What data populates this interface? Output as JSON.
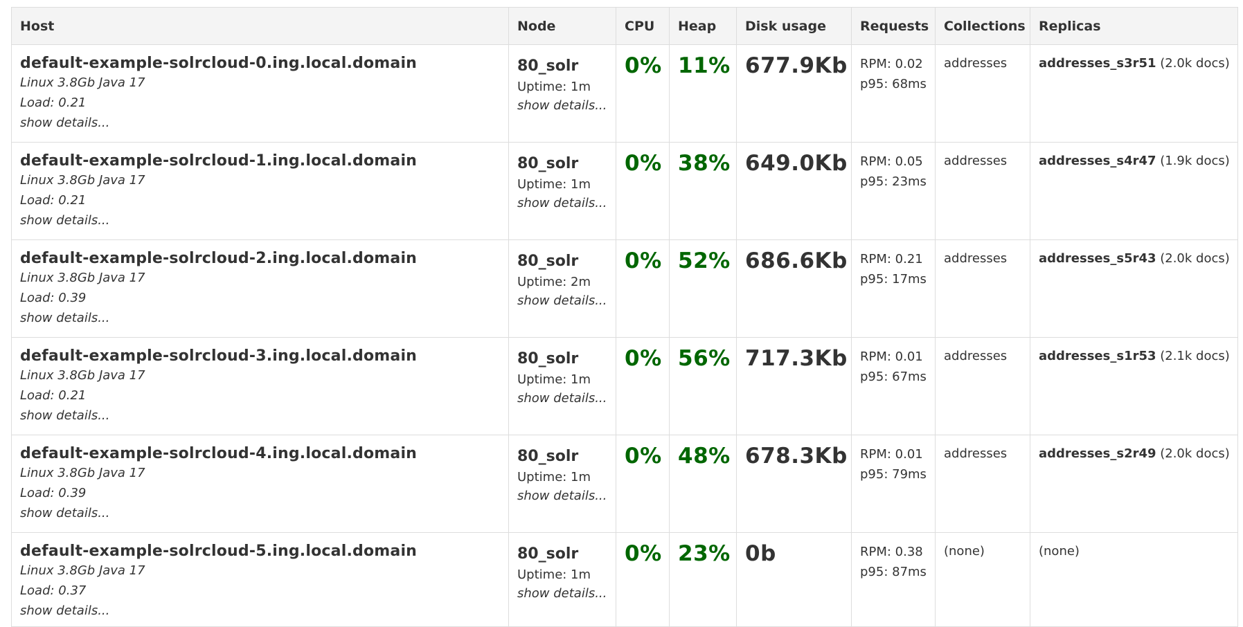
{
  "headers": {
    "host": "Host",
    "node": "Node",
    "cpu": "CPU",
    "heap": "Heap",
    "disk": "Disk usage",
    "requests": "Requests",
    "collections": "Collections",
    "replicas": "Replicas"
  },
  "rows": [
    {
      "host": "default-example-solrcloud-0.ing.local.domain",
      "os": "Linux 3.8Gb Java 17",
      "load": "Load: 0.21",
      "host_details": "show details...",
      "node": "80_solr",
      "uptime": "Uptime: 1m",
      "node_details": "show details...",
      "cpu": "0%",
      "heap": "11%",
      "disk": "677.9Kb",
      "rpm": "RPM: 0.02",
      "p95": "p95: 68ms",
      "collections": "addresses",
      "replica_name": "addresses_s3r51",
      "replica_docs": " (2.0k docs)"
    },
    {
      "host": "default-example-solrcloud-1.ing.local.domain",
      "os": "Linux 3.8Gb Java 17",
      "load": "Load: 0.21",
      "host_details": "show details...",
      "node": "80_solr",
      "uptime": "Uptime: 1m",
      "node_details": "show details...",
      "cpu": "0%",
      "heap": "38%",
      "disk": "649.0Kb",
      "rpm": "RPM: 0.05",
      "p95": "p95: 23ms",
      "collections": "addresses",
      "replica_name": "addresses_s4r47",
      "replica_docs": " (1.9k docs)"
    },
    {
      "host": "default-example-solrcloud-2.ing.local.domain",
      "os": "Linux 3.8Gb Java 17",
      "load": "Load: 0.39",
      "host_details": "show details...",
      "node": "80_solr",
      "uptime": "Uptime: 2m",
      "node_details": "show details...",
      "cpu": "0%",
      "heap": "52%",
      "disk": "686.6Kb",
      "rpm": "RPM: 0.21",
      "p95": "p95: 17ms",
      "collections": "addresses",
      "replica_name": "addresses_s5r43",
      "replica_docs": " (2.0k docs)"
    },
    {
      "host": "default-example-solrcloud-3.ing.local.domain",
      "os": "Linux 3.8Gb Java 17",
      "load": "Load: 0.21",
      "host_details": "show details...",
      "node": "80_solr",
      "uptime": "Uptime: 1m",
      "node_details": "show details...",
      "cpu": "0%",
      "heap": "56%",
      "disk": "717.3Kb",
      "rpm": "RPM: 0.01",
      "p95": "p95: 67ms",
      "collections": "addresses",
      "replica_name": "addresses_s1r53",
      "replica_docs": " (2.1k docs)"
    },
    {
      "host": "default-example-solrcloud-4.ing.local.domain",
      "os": "Linux 3.8Gb Java 17",
      "load": "Load: 0.39",
      "host_details": "show details...",
      "node": "80_solr",
      "uptime": "Uptime: 1m",
      "node_details": "show details...",
      "cpu": "0%",
      "heap": "48%",
      "disk": "678.3Kb",
      "rpm": "RPM: 0.01",
      "p95": "p95: 79ms",
      "collections": "addresses",
      "replica_name": "addresses_s2r49",
      "replica_docs": " (2.0k docs)"
    },
    {
      "host": "default-example-solrcloud-5.ing.local.domain",
      "os": "Linux 3.8Gb Java 17",
      "load": "Load: 0.37",
      "host_details": "show details...",
      "node": "80_solr",
      "uptime": "Uptime: 1m",
      "node_details": "show details...",
      "cpu": "0%",
      "heap": "23%",
      "disk": "0b",
      "rpm": "RPM: 0.38",
      "p95": "p95: 87ms",
      "collections": "(none)",
      "replica_name": "",
      "replica_docs": "(none)"
    }
  ],
  "colors": {
    "percent_ok": "#006600",
    "text": "#333333",
    "header_bg": "#f4f4f4",
    "border": "#dddddd"
  }
}
